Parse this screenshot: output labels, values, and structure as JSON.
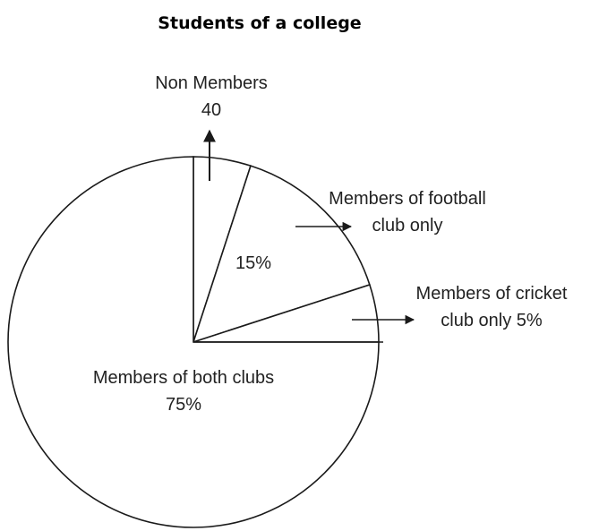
{
  "chart_data": {
    "type": "pie",
    "title": "Students of a college",
    "categories": [
      "Non Members",
      "Members of football club only",
      "Members of cricket club only",
      "Members of both clubs"
    ],
    "values": [
      5,
      15,
      5,
      75
    ],
    "value_labels": [
      null,
      "15%",
      "5%",
      "75%"
    ],
    "non_members_count": 40,
    "color": "#ffffff",
    "stroke": "#1a1a1a"
  }
}
